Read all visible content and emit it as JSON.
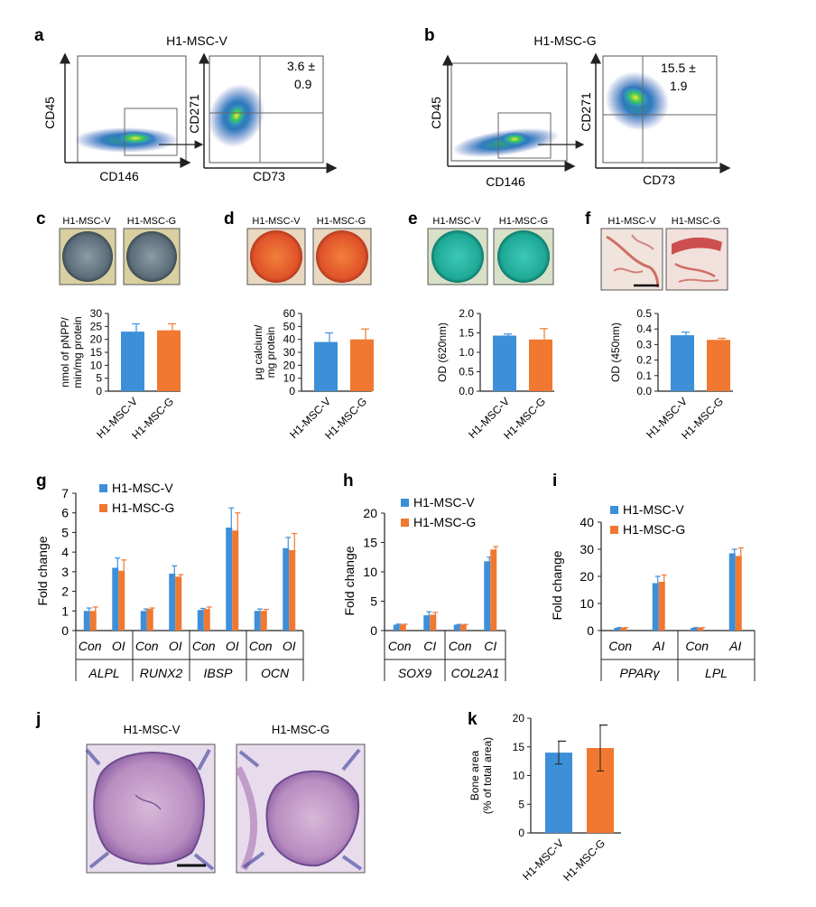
{
  "colors": {
    "v": "#3d8fd8",
    "g": "#f07830",
    "axis": "#222222"
  },
  "panels": {
    "a": {
      "letter": "a",
      "title": "H1-MSC-V",
      "left_x": "CD146",
      "left_y": "CD45",
      "right_x": "CD73",
      "right_y": "CD271",
      "stat_line1": "3.6 ±",
      "stat_line2": "0.9"
    },
    "b": {
      "letter": "b",
      "title": "H1-MSC-G",
      "left_x": "CD146",
      "left_y": "CD45",
      "right_x": "CD73",
      "right_y": "CD271",
      "stat_line1": "15.5 ±",
      "stat_line2": "1.9"
    },
    "c": {
      "letter": "c",
      "label_v": "H1-MSC-V",
      "label_g": "H1-MSC-G"
    },
    "d": {
      "letter": "d",
      "label_v": "H1-MSC-V",
      "label_g": "H1-MSC-G"
    },
    "e": {
      "letter": "e",
      "label_v": "H1-MSC-V",
      "label_g": "H1-MSC-G"
    },
    "f": {
      "letter": "f",
      "label_v": "H1-MSC-V",
      "label_g": "H1-MSC-G"
    },
    "g": {
      "letter": "g"
    },
    "h": {
      "letter": "h"
    },
    "i": {
      "letter": "i"
    },
    "j": {
      "letter": "j",
      "label_v": "H1-MSC-V",
      "label_g": "H1-MSC-G"
    },
    "k": {
      "letter": "k"
    }
  },
  "chart_data": [
    {
      "id": "c",
      "type": "bar",
      "categories": [
        "H1-MSC-V",
        "H1-MSC-G"
      ],
      "values": [
        23,
        23.5
      ],
      "errors": [
        3,
        2.5
      ],
      "ylabel": "nmol of pNPP/ min/mg protein",
      "ylim": [
        0,
        30
      ],
      "yticks": [
        0,
        5,
        10,
        15,
        20,
        25,
        30
      ]
    },
    {
      "id": "d",
      "type": "bar",
      "categories": [
        "H1-MSC-V",
        "H1-MSC-G"
      ],
      "values": [
        38,
        40
      ],
      "errors": [
        7,
        8
      ],
      "ylabel": "μg calcium/ mg protein",
      "ylim": [
        0,
        60
      ],
      "yticks": [
        0,
        10,
        20,
        30,
        40,
        50,
        60
      ]
    },
    {
      "id": "e",
      "type": "bar",
      "categories": [
        "H1-MSC-V",
        "H1-MSC-G"
      ],
      "values": [
        1.43,
        1.33
      ],
      "errors": [
        0.04,
        0.28
      ],
      "ylabel": "OD (620nm)",
      "ylim": [
        0,
        2.0
      ],
      "yticks": [
        0,
        0.5,
        1.0,
        1.5,
        2.0
      ],
      "ytick_labels": [
        "0.0",
        "0.5",
        "1.0",
        "1.5",
        "2.0"
      ]
    },
    {
      "id": "f",
      "type": "bar",
      "categories": [
        "H1-MSC-V",
        "H1-MSC-G"
      ],
      "values": [
        0.36,
        0.33
      ],
      "errors": [
        0.02,
        0.01
      ],
      "ylabel": "OD (450nm)",
      "ylim": [
        0,
        0.5
      ],
      "yticks": [
        0,
        0.1,
        0.2,
        0.3,
        0.4,
        0.5
      ],
      "ytick_labels": [
        "0.0",
        "0.1",
        "0.2",
        "0.3",
        "0.4",
        "0.5"
      ]
    },
    {
      "id": "g",
      "type": "bar",
      "groups": [
        "ALPL",
        "RUNX2",
        "IBSP",
        "OCN"
      ],
      "conditions": [
        "Con",
        "OI"
      ],
      "ylabel": "Fold change",
      "ylim": [
        0,
        7
      ],
      "yticks": [
        0,
        1,
        2,
        3,
        4,
        5,
        6,
        7
      ],
      "series": [
        {
          "name": "H1-MSC-V",
          "values": [
            1.0,
            3.2,
            1.0,
            2.9,
            1.05,
            5.25,
            1.0,
            4.2
          ],
          "errors": [
            0.15,
            0.5,
            0.1,
            0.4,
            0.08,
            1.0,
            0.1,
            0.55
          ]
        },
        {
          "name": "H1-MSC-G",
          "values": [
            1.0,
            3.05,
            1.1,
            2.75,
            1.1,
            5.1,
            1.0,
            4.1
          ],
          "errors": [
            0.2,
            0.55,
            0.05,
            0.1,
            0.1,
            0.9,
            0.08,
            0.85
          ]
        }
      ]
    },
    {
      "id": "h",
      "type": "bar",
      "groups": [
        "SOX9",
        "COL2A1"
      ],
      "conditions": [
        "Con",
        "CI"
      ],
      "ylabel": "Fold change",
      "ylim": [
        0,
        20
      ],
      "yticks": [
        0,
        5,
        10,
        15,
        20
      ],
      "series": [
        {
          "name": "H1-MSC-V",
          "values": [
            1.0,
            2.6,
            1.0,
            11.8
          ],
          "errors": [
            0.1,
            0.6,
            0.05,
            0.7
          ]
        },
        {
          "name": "H1-MSC-G",
          "values": [
            1.0,
            2.7,
            1.0,
            13.8
          ],
          "errors": [
            0.08,
            0.4,
            0.05,
            0.5
          ]
        }
      ]
    },
    {
      "id": "i",
      "type": "bar",
      "groups": [
        "PPARγ",
        "LPL"
      ],
      "conditions": [
        "Con",
        "AI"
      ],
      "ylabel": "Fold change",
      "ylim": [
        0,
        40
      ],
      "yticks": [
        0,
        10,
        20,
        30,
        40
      ],
      "series": [
        {
          "name": "H1-MSC-V",
          "values": [
            1.0,
            17.5,
            1.0,
            28.5
          ],
          "errors": [
            0.1,
            2.5,
            0.1,
            1.5
          ]
        },
        {
          "name": "H1-MSC-G",
          "values": [
            1.0,
            18.0,
            1.0,
            27.5
          ],
          "errors": [
            0.1,
            2.5,
            0.1,
            3.0
          ]
        }
      ]
    },
    {
      "id": "k",
      "type": "bar",
      "categories": [
        "H1-MSC-V",
        "H1-MSC-G"
      ],
      "values": [
        14,
        14.8
      ],
      "errors": [
        2,
        4
      ],
      "ylabel": "Bone area (% of total area)",
      "ylim": [
        0,
        20
      ],
      "yticks": [
        0,
        5,
        10,
        15,
        20
      ]
    }
  ]
}
